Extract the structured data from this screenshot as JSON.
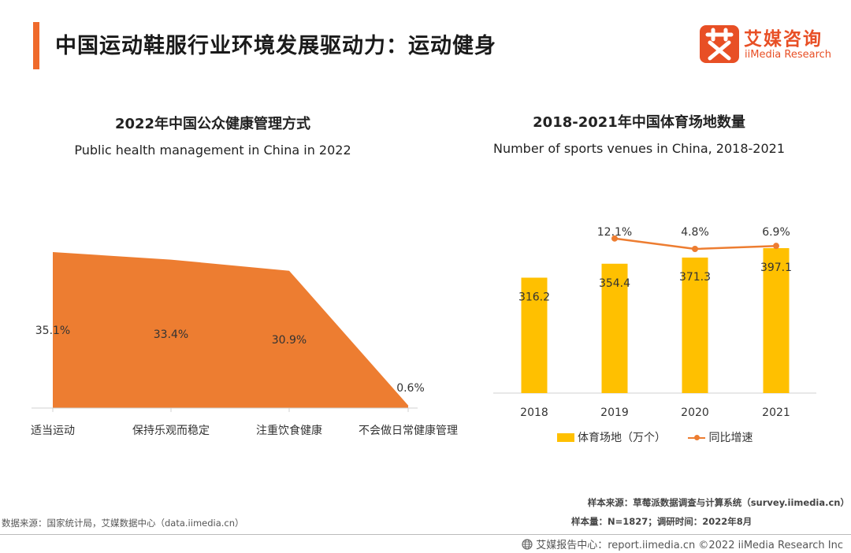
{
  "header": {
    "title": "中国运动鞋服行业环境发展驱动力：运动健身",
    "brand_cn": "艾媒咨询",
    "brand_en": "iiMedia Research",
    "brand_color": "#e84f25",
    "accent_color": "#ef6a2b"
  },
  "left_chart": {
    "title_cn": "2022年中国公众健康管理方式",
    "title_en": "Public health management in China in 2022"
  },
  "right_chart": {
    "title_cn": "2018-2021年中国体育场地数量",
    "title_en": "Number of sports venues in China, 2018-2021",
    "legend_bar": "体育场地（万个）",
    "legend_line": "同比增速"
  },
  "chart_data": [
    {
      "type": "area",
      "title": "2022年中国公众健康管理方式",
      "subtitle": "Public health management in China in 2022",
      "categories": [
        "适当运动",
        "保持乐观而稳定",
        "注重饮食健康",
        "不会做日常健康管理"
      ],
      "values": [
        35.1,
        33.4,
        30.9,
        0.6
      ],
      "labels": [
        "35.1%",
        "33.4%",
        "30.9%",
        "0.6%"
      ],
      "ylim": [
        0,
        40
      ],
      "color": "#ed7d31"
    },
    {
      "type": "bar",
      "title": "2018-2021年中国体育场地数量",
      "subtitle": "Number of sports venues in China, 2018-2021",
      "categories": [
        "2018",
        "2019",
        "2020",
        "2021"
      ],
      "series": [
        {
          "name": "体育场地（万个）",
          "type": "bar",
          "values": [
            316.2,
            354.4,
            371.3,
            397.1
          ],
          "labels": [
            "316.2",
            "354.4",
            "371.3",
            "397.1"
          ],
          "color": "#ffc000"
        },
        {
          "name": "同比增速",
          "type": "line",
          "values": [
            null,
            12.1,
            4.8,
            6.9
          ],
          "labels": [
            "",
            "12.1%",
            "4.8%",
            "6.9%"
          ],
          "color": "#ed7d31"
        }
      ],
      "ylim": [
        0,
        420
      ]
    }
  ],
  "notes": {
    "sample_source": "样本来源：草莓派数据调查与计算系统（survey.iimedia.cn）",
    "sample_size": "样本量：N=1827；调研时间：2022年8月",
    "data_source": "数据来源：国家统计局，艾媒数据中心（data.iimedia.cn）"
  },
  "footer": {
    "text": "艾媒报告中心：report.iimedia.cn  ©2022  iiMedia Research  Inc"
  }
}
